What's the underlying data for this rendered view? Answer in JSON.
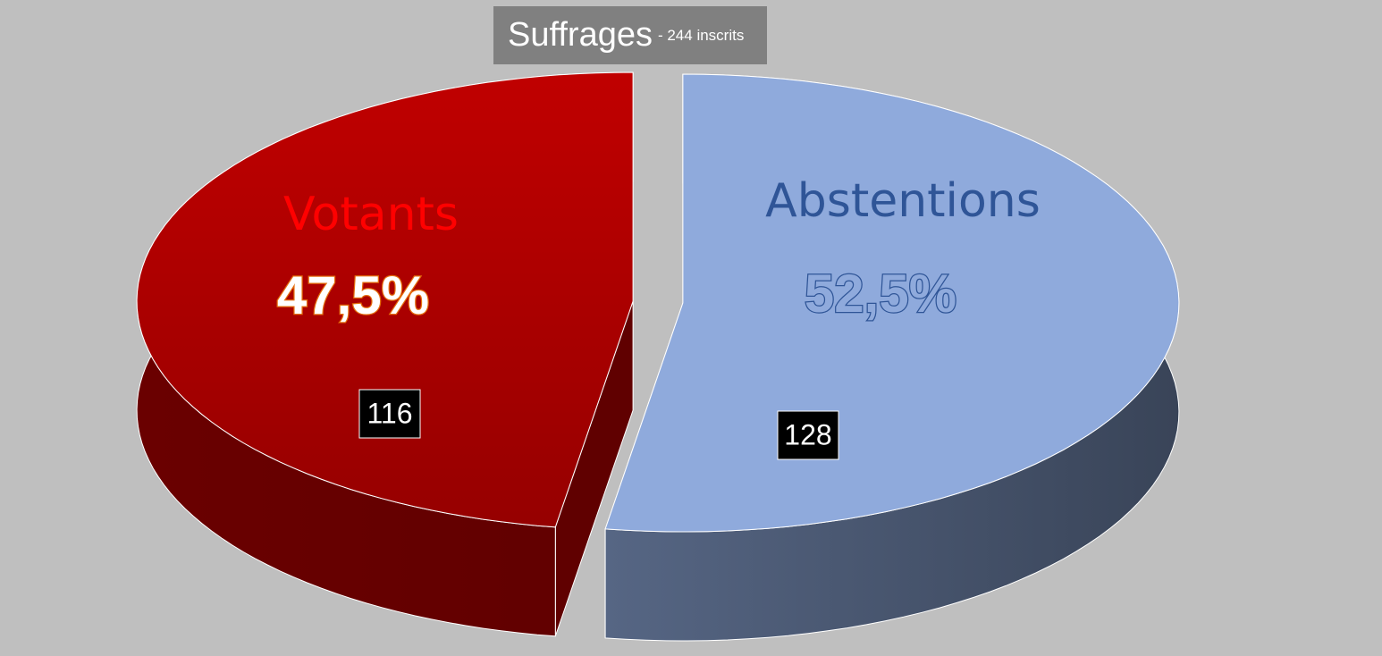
{
  "chart_data": {
    "type": "pie3d",
    "title": "Suffrages",
    "subtitle": "- 244 inscrits",
    "categories": [
      "Votants",
      "Abstentions"
    ],
    "values": [
      47.5,
      52.5
    ],
    "value_labels": [
      "47,5%",
      "52,5%"
    ],
    "counts": [
      116,
      128
    ],
    "colors": [
      "#c00000",
      "#8faadc"
    ]
  }
}
